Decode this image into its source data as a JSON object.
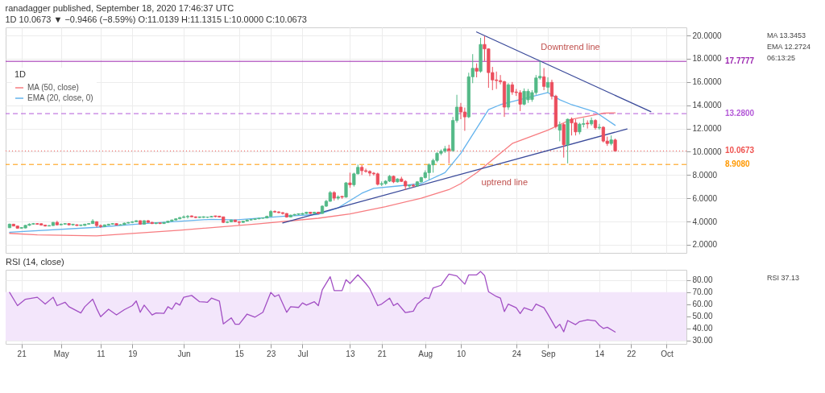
{
  "chart_data": [
    {
      "type": "candlestick",
      "title": "ranadagger published, September 18, 2020 17:46:37 UTC",
      "subtitle": "1D 10.0673 ▼ −0.9466 (−8.59%) O:11.0139 H:11.1315 L:10.0000 C:10.0673",
      "legend_title": "1D",
      "legend": "top left",
      "grid": true,
      "tick_labels": "y",
      "xlim": [
        "2020-04-17",
        "2020-10-06"
      ],
      "xticks": [
        {
          "value": "2020-04-21",
          "label": null
        },
        {
          "value": "2020-05-01",
          "label": null
        },
        {
          "value": "2020-05-11",
          "label": null
        },
        {
          "value": "2020-05-19",
          "label": null
        },
        {
          "value": "2020-06-01",
          "label": null
        },
        {
          "value": "2020-06-15",
          "label": null
        },
        {
          "value": "2020-06-23",
          "label": null
        },
        {
          "value": "2020-07-01",
          "label": null
        },
        {
          "value": "2020-07-13",
          "label": null
        },
        {
          "value": "2020-07-21",
          "label": null
        },
        {
          "value": "2020-08-01",
          "label": null
        },
        {
          "value": "2020-08-10",
          "label": null
        },
        {
          "value": "2020-08-24",
          "label": null
        },
        {
          "value": "2020-09-01",
          "label": null
        },
        {
          "value": "2020-09-14",
          "label": null
        },
        {
          "value": "2020-09-22",
          "label": null
        },
        {
          "value": "2020-10-01",
          "label": null
        }
      ],
      "ylim": [
        1.3,
        20.7
      ],
      "yticks": [
        {
          "value": 2,
          "label": "2.0000"
        },
        {
          "value": 4,
          "label": "4.0000"
        },
        {
          "value": 6,
          "label": "6.0000"
        },
        {
          "value": 8,
          "label": "8.0000"
        },
        {
          "value": 10,
          "label": "10.0000"
        },
        {
          "value": 12,
          "label": "12.0000"
        },
        {
          "value": 14,
          "label": "14.0000"
        },
        {
          "value": 16,
          "label": "16.0000"
        },
        {
          "value": 18,
          "label": "18.0000"
        },
        {
          "value": 20,
          "label": "20.0000"
        }
      ],
      "x": [
        "2020-04-18",
        "2020-04-19",
        "2020-04-20",
        "2020-04-21",
        "2020-04-22",
        "2020-04-23",
        "2020-04-24",
        "2020-04-25",
        "2020-04-26",
        "2020-04-27",
        "2020-04-28",
        "2020-04-29",
        "2020-04-30",
        "2020-05-01",
        "2020-05-02",
        "2020-05-03",
        "2020-05-04",
        "2020-05-05",
        "2020-05-06",
        "2020-05-07",
        "2020-05-08",
        "2020-05-09",
        "2020-05-10",
        "2020-05-11",
        "2020-05-12",
        "2020-05-13",
        "2020-05-14",
        "2020-05-15",
        "2020-05-16",
        "2020-05-17",
        "2020-05-18",
        "2020-05-19",
        "2020-05-20",
        "2020-05-21",
        "2020-05-22",
        "2020-05-23",
        "2020-05-24",
        "2020-05-25",
        "2020-05-26",
        "2020-05-27",
        "2020-05-28",
        "2020-05-29",
        "2020-05-30",
        "2020-05-31",
        "2020-06-01",
        "2020-06-02",
        "2020-06-03",
        "2020-06-04",
        "2020-06-05",
        "2020-06-06",
        "2020-06-07",
        "2020-06-08",
        "2020-06-09",
        "2020-06-10",
        "2020-06-11",
        "2020-06-12",
        "2020-06-13",
        "2020-06-14",
        "2020-06-15",
        "2020-06-16",
        "2020-06-17",
        "2020-06-18",
        "2020-06-19",
        "2020-06-20",
        "2020-06-21",
        "2020-06-22",
        "2020-06-23",
        "2020-06-24",
        "2020-06-25",
        "2020-06-26",
        "2020-06-27",
        "2020-06-28",
        "2020-06-29",
        "2020-06-30",
        "2020-07-01",
        "2020-07-02",
        "2020-07-03",
        "2020-07-04",
        "2020-07-05",
        "2020-07-06",
        "2020-07-07",
        "2020-07-08",
        "2020-07-09",
        "2020-07-10",
        "2020-07-11",
        "2020-07-12",
        "2020-07-13",
        "2020-07-14",
        "2020-07-15",
        "2020-07-16",
        "2020-07-17",
        "2020-07-18",
        "2020-07-19",
        "2020-07-20",
        "2020-07-21",
        "2020-07-22",
        "2020-07-23",
        "2020-07-24",
        "2020-07-25",
        "2020-07-26",
        "2020-07-27",
        "2020-07-28",
        "2020-07-29",
        "2020-07-30",
        "2020-07-31",
        "2020-08-01",
        "2020-08-02",
        "2020-08-03",
        "2020-08-04",
        "2020-08-05",
        "2020-08-06",
        "2020-08-07",
        "2020-08-08",
        "2020-08-09",
        "2020-08-10",
        "2020-08-11",
        "2020-08-12",
        "2020-08-13",
        "2020-08-14",
        "2020-08-15",
        "2020-08-16",
        "2020-08-17",
        "2020-08-18",
        "2020-08-19",
        "2020-08-20",
        "2020-08-21",
        "2020-08-22",
        "2020-08-23",
        "2020-08-24",
        "2020-08-25",
        "2020-08-26",
        "2020-08-27",
        "2020-08-28",
        "2020-08-29",
        "2020-08-30",
        "2020-08-31",
        "2020-09-01",
        "2020-09-02",
        "2020-09-03",
        "2020-09-04",
        "2020-09-05",
        "2020-09-06",
        "2020-09-07",
        "2020-09-08",
        "2020-09-09",
        "2020-09-10",
        "2020-09-11",
        "2020-09-12",
        "2020-09-13",
        "2020-09-14",
        "2020-09-15",
        "2020-09-16",
        "2020-09-17",
        "2020-09-18"
      ],
      "ohlc": [
        [
          3.46,
          3.82,
          3.44,
          3.77
        ],
        [
          3.77,
          3.8,
          3.58,
          3.61
        ],
        [
          3.61,
          3.64,
          3.38,
          3.42
        ],
        [
          3.42,
          3.5,
          3.38,
          3.48
        ],
        [
          3.44,
          3.7,
          3.42,
          3.67
        ],
        [
          3.67,
          3.84,
          3.62,
          3.77
        ],
        [
          3.77,
          3.87,
          3.74,
          3.82
        ],
        [
          3.82,
          3.86,
          3.74,
          3.76
        ],
        [
          3.81,
          3.84,
          3.66,
          3.69
        ],
        [
          3.69,
          3.73,
          3.57,
          3.61
        ],
        [
          3.61,
          3.7,
          3.58,
          3.65
        ],
        [
          3.65,
          3.96,
          3.63,
          3.92
        ],
        [
          3.92,
          4.06,
          3.66,
          3.71
        ],
        [
          3.71,
          3.82,
          3.68,
          3.77
        ],
        [
          3.77,
          3.85,
          3.74,
          3.82
        ],
        [
          3.82,
          3.86,
          3.65,
          3.71
        ],
        [
          3.71,
          3.78,
          3.64,
          3.77
        ],
        [
          3.72,
          3.76,
          3.62,
          3.65
        ],
        [
          3.65,
          3.72,
          3.61,
          3.71
        ],
        [
          3.66,
          3.8,
          3.63,
          3.77
        ],
        [
          3.77,
          3.86,
          3.74,
          3.82
        ],
        [
          3.82,
          4.2,
          3.8,
          4.03
        ],
        [
          3.98,
          4.02,
          3.5,
          3.65
        ],
        [
          3.65,
          3.75,
          3.45,
          3.57
        ],
        [
          3.57,
          3.74,
          3.55,
          3.71
        ],
        [
          3.69,
          3.8,
          3.66,
          3.77
        ],
        [
          3.77,
          3.86,
          3.74,
          3.82
        ],
        [
          3.82,
          3.85,
          3.66,
          3.69
        ],
        [
          3.69,
          3.76,
          3.67,
          3.73
        ],
        [
          3.73,
          3.9,
          3.71,
          3.86
        ],
        [
          3.86,
          3.95,
          3.83,
          3.92
        ],
        [
          3.92,
          4.02,
          3.88,
          3.98
        ],
        [
          3.98,
          4.1,
          3.95,
          4.07
        ],
        [
          4.07,
          4.09,
          3.72,
          3.77
        ],
        [
          3.77,
          4.1,
          3.75,
          4.07
        ],
        [
          4.07,
          4.12,
          3.88,
          3.92
        ],
        [
          3.92,
          3.97,
          3.78,
          3.82
        ],
        [
          3.82,
          3.9,
          3.77,
          3.88
        ],
        [
          3.88,
          3.9,
          3.78,
          3.82
        ],
        [
          3.82,
          3.95,
          3.8,
          3.92
        ],
        [
          3.92,
          4.06,
          3.89,
          4.03
        ],
        [
          4.03,
          4.16,
          3.99,
          4.13
        ],
        [
          4.13,
          4.28,
          4.1,
          4.23
        ],
        [
          4.23,
          4.38,
          4.19,
          4.34
        ],
        [
          4.34,
          4.52,
          4.3,
          4.4
        ],
        [
          4.4,
          4.56,
          4.25,
          4.44
        ],
        [
          4.48,
          4.52,
          4.36,
          4.4
        ],
        [
          4.4,
          4.44,
          4.28,
          4.34
        ],
        [
          4.34,
          4.42,
          4.3,
          4.4
        ],
        [
          4.35,
          4.44,
          4.31,
          4.41
        ],
        [
          4.36,
          4.42,
          4.31,
          4.38
        ],
        [
          4.38,
          4.48,
          4.35,
          4.44
        ],
        [
          4.48,
          4.5,
          4.36,
          4.42
        ],
        [
          4.46,
          4.48,
          4.34,
          4.38
        ],
        [
          4.4,
          4.42,
          3.86,
          3.92
        ],
        [
          3.92,
          4.04,
          3.85,
          3.96
        ],
        [
          3.96,
          4.16,
          3.93,
          4.13
        ],
        [
          4.13,
          4.15,
          3.94,
          3.98
        ],
        [
          3.98,
          4.02,
          3.7,
          3.92
        ],
        [
          3.92,
          4.06,
          3.88,
          4.03
        ],
        [
          4.03,
          4.17,
          4.0,
          4.13
        ],
        [
          4.13,
          4.2,
          4.08,
          4.17
        ],
        [
          4.17,
          4.27,
          4.13,
          4.23
        ],
        [
          4.23,
          4.31,
          4.19,
          4.28
        ],
        [
          4.28,
          4.34,
          4.25,
          4.3
        ],
        [
          4.3,
          4.5,
          4.27,
          4.44
        ],
        [
          4.44,
          4.98,
          4.42,
          4.86
        ],
        [
          4.86,
          4.95,
          4.75,
          4.82
        ],
        [
          4.82,
          4.88,
          4.7,
          4.76
        ],
        [
          4.76,
          4.8,
          4.6,
          4.69
        ],
        [
          4.69,
          4.72,
          4.33,
          4.38
        ],
        [
          4.38,
          4.58,
          4.35,
          4.55
        ],
        [
          4.55,
          4.65,
          4.5,
          4.61
        ],
        [
          4.61,
          4.68,
          4.55,
          4.67
        ],
        [
          4.62,
          4.74,
          4.58,
          4.69
        ],
        [
          4.69,
          4.84,
          4.64,
          4.8
        ],
        [
          4.8,
          4.83,
          4.65,
          4.69
        ],
        [
          4.69,
          4.84,
          4.66,
          4.8
        ],
        [
          4.8,
          4.84,
          4.62,
          4.69
        ],
        [
          4.69,
          5.4,
          4.66,
          5.32
        ],
        [
          5.32,
          5.86,
          5.25,
          5.74
        ],
        [
          5.74,
          6.62,
          5.7,
          6.49
        ],
        [
          6.49,
          6.6,
          5.8,
          6.01
        ],
        [
          6.01,
          6.25,
          5.85,
          6.11
        ],
        [
          6.16,
          6.2,
          5.95,
          6.1
        ],
        [
          6.1,
          7.4,
          6.05,
          7.32
        ],
        [
          7.32,
          8.2,
          6.9,
          7.16
        ],
        [
          7.16,
          8.2,
          7.0,
          8.1
        ],
        [
          8.1,
          8.9,
          8.05,
          8.66
        ],
        [
          8.66,
          8.85,
          8.0,
          8.37
        ],
        [
          8.37,
          8.55,
          8.2,
          8.31
        ],
        [
          8.31,
          8.4,
          7.9,
          8.16
        ],
        [
          8.16,
          8.25,
          7.95,
          8.1
        ],
        [
          8.1,
          8.2,
          7.1,
          7.2
        ],
        [
          7.2,
          7.45,
          7.05,
          7.26
        ],
        [
          7.26,
          7.55,
          7.15,
          7.47
        ],
        [
          7.47,
          8.0,
          7.4,
          7.89
        ],
        [
          7.89,
          7.95,
          7.3,
          7.41
        ],
        [
          7.41,
          7.72,
          7.35,
          7.66
        ],
        [
          7.66,
          7.85,
          7.4,
          7.45
        ],
        [
          7.45,
          7.55,
          6.7,
          7.05
        ],
        [
          7.05,
          7.2,
          6.9,
          7.12
        ],
        [
          7.12,
          7.25,
          6.95,
          7.05
        ],
        [
          7.05,
          7.48,
          6.98,
          7.41
        ],
        [
          7.41,
          7.85,
          7.35,
          7.78
        ],
        [
          7.78,
          8.4,
          7.7,
          8.2
        ],
        [
          8.2,
          9.0,
          7.6,
          8.87
        ],
        [
          8.87,
          9.4,
          8.2,
          9.25
        ],
        [
          9.25,
          9.95,
          9.1,
          9.87
        ],
        [
          9.87,
          10.2,
          9.7,
          10.05
        ],
        [
          10.05,
          10.5,
          9.9,
          10.25
        ],
        [
          10.25,
          10.6,
          9.0,
          10.1
        ],
        [
          10.1,
          13.0,
          10.0,
          12.69
        ],
        [
          12.69,
          14.9,
          12.5,
          13.84
        ],
        [
          13.84,
          14.2,
          12.8,
          13.42
        ],
        [
          13.42,
          13.8,
          11.8,
          13.0
        ],
        [
          13.0,
          16.8,
          12.9,
          16.45
        ],
        [
          16.45,
          18.4,
          15.9,
          17.18
        ],
        [
          17.18,
          17.6,
          16.4,
          16.93
        ],
        [
          16.93,
          19.8,
          16.8,
          19.23
        ],
        [
          19.23,
          19.95,
          17.8,
          18.85
        ],
        [
          18.85,
          18.9,
          15.5,
          16.81
        ],
        [
          16.81,
          17.3,
          15.3,
          16.18
        ],
        [
          16.18,
          16.9,
          15.4,
          16.12
        ],
        [
          16.12,
          16.6,
          15.8,
          16.03
        ],
        [
          16.03,
          16.1,
          13.0,
          13.84
        ],
        [
          13.84,
          15.9,
          13.6,
          15.76
        ],
        [
          15.76,
          16.0,
          14.9,
          15.14
        ],
        [
          15.14,
          15.4,
          14.8,
          15.09
        ],
        [
          15.09,
          15.3,
          13.5,
          14.09
        ],
        [
          14.09,
          15.45,
          14.0,
          15.2
        ],
        [
          14.47,
          15.4,
          14.2,
          15.2
        ],
        [
          14.5,
          15.3,
          14.3,
          15.09
        ],
        [
          15.09,
          16.6,
          14.9,
          16.35
        ],
        [
          16.35,
          17.8,
          16.2,
          16.49
        ],
        [
          16.45,
          17.2,
          15.3,
          15.62
        ],
        [
          15.55,
          16.4,
          15.1,
          15.97
        ],
        [
          15.97,
          16.2,
          14.5,
          14.78
        ],
        [
          14.78,
          14.9,
          12.0,
          12.17
        ],
        [
          11.86,
          12.6,
          10.9,
          12.34
        ],
        [
          12.34,
          12.45,
          9.5,
          10.6
        ],
        [
          10.6,
          12.85,
          9.0,
          12.8
        ],
        [
          12.8,
          12.95,
          11.4,
          12.48
        ],
        [
          12.48,
          12.8,
          11.4,
          11.71
        ],
        [
          11.71,
          12.5,
          11.5,
          12.38
        ],
        [
          12.36,
          12.9,
          12.1,
          12.42
        ],
        [
          12.46,
          12.7,
          12.0,
          12.4
        ],
        [
          12.4,
          12.95,
          12.25,
          12.69
        ],
        [
          12.69,
          12.8,
          11.9,
          12.07
        ],
        [
          12.05,
          12.4,
          11.9,
          12.11
        ],
        [
          12.11,
          12.2,
          10.8,
          10.92
        ],
        [
          10.92,
          11.3,
          10.5,
          10.71
        ],
        [
          10.71,
          11.4,
          10.55,
          11.02
        ],
        [
          11.0139,
          11.1315,
          10.0,
          10.0673
        ]
      ],
      "colors": [
        "#53b987",
        "#eb4d5c",
        "#eb4d5c",
        "#53b987",
        "#53b987",
        "#53b987",
        "#53b987",
        "#eb4d5c",
        "#eb4d5c",
        "#eb4d5c",
        "#53b987",
        "#53b987",
        "#eb4d5c",
        "#53b987",
        "#53b987",
        "#eb4d5c",
        "#53b987",
        "#eb4d5c",
        "#53b987",
        "#53b987",
        "#53b987",
        "#53b987",
        "#eb4d5c",
        "#eb4d5c",
        "#53b987",
        "#53b987",
        "#53b987",
        "#eb4d5c",
        "#53b987",
        "#53b987",
        "#53b987",
        "#53b987",
        "#53b987",
        "#eb4d5c",
        "#53b987",
        "#eb4d5c",
        "#eb4d5c",
        "#53b987",
        "#eb4d5c",
        "#53b987",
        "#53b987",
        "#53b987",
        "#53b987",
        "#53b987",
        "#53b987",
        "#53b987",
        "#eb4d5c",
        "#eb4d5c",
        "#53b987",
        "#53b987",
        "#53b987",
        "#53b987",
        "#eb4d5c",
        "#eb4d5c",
        "#eb4d5c",
        "#53b987",
        "#53b987",
        "#eb4d5c",
        "#eb4d5c",
        "#53b987",
        "#53b987",
        "#53b987",
        "#53b987",
        "#53b987",
        "#53b987",
        "#53b987",
        "#53b987",
        "#eb4d5c",
        "#eb4d5c",
        "#eb4d5c",
        "#eb4d5c",
        "#53b987",
        "#53b987",
        "#53b987",
        "#53b987",
        "#53b987",
        "#eb4d5c",
        "#53b987",
        "#eb4d5c",
        "#53b987",
        "#53b987",
        "#53b987",
        "#eb4d5c",
        "#53b987",
        "#eb4d5c",
        "#53b987",
        "#eb4d5c",
        "#53b987",
        "#53b987",
        "#eb4d5c",
        "#eb4d5c",
        "#eb4d5c",
        "#eb4d5c",
        "#eb4d5c",
        "#53b987",
        "#53b987",
        "#53b987",
        "#eb4d5c",
        "#53b987",
        "#eb4d5c",
        "#eb4d5c",
        "#53b987",
        "#eb4d5c",
        "#53b987",
        "#53b987",
        "#53b987",
        "#53b987",
        "#53b987",
        "#53b987",
        "#53b987",
        "#53b987",
        "#eb4d5c",
        "#53b987",
        "#53b987",
        "#eb4d5c",
        "#eb4d5c",
        "#53b987",
        "#53b987",
        "#eb4d5c",
        "#53b987",
        "#eb4d5c",
        "#eb4d5c",
        "#eb4d5c",
        "#eb4d5c",
        "#eb4d5c",
        "#eb4d5c",
        "#53b987",
        "#eb4d5c",
        "#eb4d5c",
        "#eb4d5c",
        "#53b987",
        "#53b987",
        "#53b987",
        "#53b987",
        "#53b987",
        "#eb4d5c",
        "#53b987",
        "#eb4d5c",
        "#eb4d5c",
        "#53b987",
        "#eb4d5c",
        "#53b987",
        "#eb4d5c",
        "#eb4d5c",
        "#53b987",
        "#53b987",
        "#eb4d5c",
        "#53b987",
        "#eb4d5c",
        "#53b987",
        "#eb4d5c",
        "#eb4d5c",
        "#53b987",
        "#eb4d5c"
      ],
      "series": [
        {
          "type": "line",
          "name": "MA (50, close)",
          "color": "#f77c80",
          "x": [
            "2020-04-18",
            "2020-04-25",
            "2020-05-10",
            "2020-05-31",
            "2020-06-20",
            "2020-07-05",
            "2020-07-13",
            "2020-07-22",
            "2020-07-31",
            "2020-08-07",
            "2020-08-10",
            "2020-08-14",
            "2020-08-23",
            "2020-09-01",
            "2020-09-07",
            "2020-09-15",
            "2020-09-18"
          ],
          "values": [
            2.98,
            2.85,
            2.77,
            3.25,
            3.8,
            4.28,
            4.65,
            5.28,
            6.01,
            6.74,
            7.26,
            8.2,
            10.71,
            11.86,
            12.8,
            13.32,
            13.3453
          ]
        },
        {
          "type": "line",
          "name": "EMA (20, close, 0)",
          "color": "#63b3ed",
          "x": [
            "2020-04-18",
            "2020-05-10",
            "2020-05-22",
            "2020-06-08",
            "2020-06-14",
            "2020-06-26",
            "2020-07-05",
            "2020-07-10",
            "2020-07-16",
            "2020-07-19",
            "2020-07-25",
            "2020-07-31",
            "2020-08-06",
            "2020-08-10",
            "2020-08-17",
            "2020-08-20",
            "2020-09-01",
            "2020-09-04",
            "2020-09-07",
            "2020-09-13",
            "2020-09-18"
          ],
          "values": [
            3.08,
            3.5,
            3.82,
            4.19,
            4.13,
            4.44,
            4.61,
            5.17,
            6.43,
            6.85,
            7.05,
            7.26,
            8.2,
            9.87,
            13.63,
            14.05,
            15.09,
            14.47,
            14.05,
            13.42,
            12.2724
          ]
        },
        {
          "type": "line",
          "color": "#3a4a9a",
          "x": [
            "2020-06-26",
            "2020-09-21"
          ],
          "values": [
            3.88,
            11.96
          ]
        },
        {
          "type": "line",
          "color": "#3a4a9a",
          "x": [
            "2020-08-14",
            "2020-09-27"
          ],
          "values": [
            20.3,
            13.45
          ]
        }
      ],
      "ref_lines": [
        {
          "axis": "y",
          "value": 17.7777,
          "label": "17.7777",
          "color": "#9c27b0"
        },
        {
          "axis": "y",
          "value": 13.28,
          "label": "13.2800",
          "color": "#b45ad8",
          "line_style": "dashed"
        },
        {
          "axis": "y",
          "value": 10.0673,
          "label": "10.0673",
          "color": "#ef5350",
          "line_style": "dotted"
        },
        {
          "axis": "y",
          "value": 8.908,
          "label": "8.9080",
          "color": "#ff9800",
          "line_style": "dashed"
        }
      ],
      "annotations": [
        {
          "text": "Downtrend line",
          "x": "2020-08-29",
          "y": 17.96
        },
        {
          "text": "uptrend line",
          "x": "2020-08-14",
          "y": 8.43
        },
        "MA 13.3453",
        "EMA 12.2724",
        "06:13:25"
      ]
    },
    {
      "type": "line",
      "title": "RSI (14, close)",
      "grid": true,
      "xlim": [
        "2020-04-17",
        "2020-10-06"
      ],
      "xticks": [
        {
          "value": "2020-04-21",
          "label": "21"
        },
        {
          "value": "2020-05-01",
          "label": "May"
        },
        {
          "value": "2020-05-11",
          "label": "11"
        },
        {
          "value": "2020-05-19",
          "label": "19"
        },
        {
          "value": "2020-06-01",
          "label": "Jun"
        },
        {
          "value": "2020-06-15",
          "label": "15"
        },
        {
          "value": "2020-06-23",
          "label": "23"
        },
        {
          "value": "2020-07-01",
          "label": "Jul"
        },
        {
          "value": "2020-07-13",
          "label": "13"
        },
        {
          "value": "2020-07-21",
          "label": "21"
        },
        {
          "value": "2020-08-01",
          "label": "Aug"
        },
        {
          "value": "2020-08-10",
          "label": "10"
        },
        {
          "value": "2020-08-24",
          "label": "24"
        },
        {
          "value": "2020-09-01",
          "label": "Sep"
        },
        {
          "value": "2020-09-14",
          "label": "14"
        },
        {
          "value": "2020-09-22",
          "label": "22"
        },
        {
          "value": "2020-10-01",
          "label": "Oct"
        }
      ],
      "ylim": [
        27.3,
        88.5
      ],
      "yticks": [
        {
          "value": 30,
          "label": "30.00"
        },
        {
          "value": 40,
          "label": "40.00"
        },
        {
          "value": 50,
          "label": "50.00"
        },
        {
          "value": 60,
          "label": "60.00"
        },
        {
          "value": 70,
          "label": "70.00"
        },
        {
          "value": 80,
          "label": "80.00"
        }
      ],
      "bands": [
        {
          "axis": "y",
          "from": 30,
          "to": 70,
          "color": "#f3e6fb"
        }
      ],
      "series": [
        {
          "color": "#a24fc4",
          "x": [
            "2020-04-18",
            "2020-04-20",
            "2020-04-22",
            "2020-04-25",
            "2020-04-27",
            "2020-04-29",
            "2020-04-30",
            "2020-05-02",
            "2020-05-03",
            "2020-05-06",
            "2020-05-07",
            "2020-05-09",
            "2020-05-10",
            "2020-05-11",
            "2020-05-13",
            "2020-05-15",
            "2020-05-17",
            "2020-05-19",
            "2020-05-20",
            "2020-05-21",
            "2020-05-22",
            "2020-05-24",
            "2020-05-25",
            "2020-05-27",
            "2020-05-28",
            "2020-05-29",
            "2020-05-30",
            "2020-05-31",
            "2020-06-01",
            "2020-06-03",
            "2020-06-05",
            "2020-06-07",
            "2020-06-08",
            "2020-06-10",
            "2020-06-11",
            "2020-06-13",
            "2020-06-14",
            "2020-06-15",
            "2020-06-17",
            "2020-06-19",
            "2020-06-21",
            "2020-06-23",
            "2020-06-24",
            "2020-06-25",
            "2020-06-27",
            "2020-06-28",
            "2020-06-30",
            "2020-07-01",
            "2020-07-02",
            "2020-07-04",
            "2020-07-05",
            "2020-07-06",
            "2020-07-08",
            "2020-07-09",
            "2020-07-11",
            "2020-07-12",
            "2020-07-13",
            "2020-07-15",
            "2020-07-17",
            "2020-07-18",
            "2020-07-20",
            "2020-07-21",
            "2020-07-23",
            "2020-07-24",
            "2020-07-25",
            "2020-07-27",
            "2020-07-29",
            "2020-07-30",
            "2020-08-01",
            "2020-08-02",
            "2020-08-03",
            "2020-08-05",
            "2020-08-07",
            "2020-08-09",
            "2020-08-11",
            "2020-08-12",
            "2020-08-14",
            "2020-08-15",
            "2020-08-16",
            "2020-08-17",
            "2020-08-19",
            "2020-08-20",
            "2020-08-21",
            "2020-08-22",
            "2020-08-24",
            "2020-08-25",
            "2020-08-26",
            "2020-08-28",
            "2020-08-29",
            "2020-08-31",
            "2020-09-01",
            "2020-09-03",
            "2020-09-04",
            "2020-09-05",
            "2020-09-06",
            "2020-09-08",
            "2020-09-09",
            "2020-09-11",
            "2020-09-13",
            "2020-09-14",
            "2020-09-15",
            "2020-09-16",
            "2020-09-18"
          ],
          "values": [
            69.8,
            58.9,
            64.2,
            65.8,
            60.2,
            65.8,
            58.9,
            61.7,
            58.0,
            52.8,
            58.0,
            64.2,
            56.5,
            49.7,
            55.9,
            51.2,
            55.6,
            58.9,
            62.7,
            53.4,
            59.3,
            51.2,
            52.8,
            52.5,
            58.0,
            55.9,
            61.1,
            59.3,
            65.8,
            67.3,
            62.1,
            61.7,
            65.1,
            62.7,
            43.8,
            48.8,
            43.5,
            43.5,
            51.9,
            49.4,
            53.4,
            69.8,
            66.4,
            67.9,
            53.4,
            58.0,
            57.4,
            61.1,
            59.3,
            62.1,
            58.9,
            71.9,
            82.8,
            71.3,
            71.3,
            80.3,
            77.2,
            84.3,
            77.2,
            72.9,
            58.9,
            60.2,
            65.1,
            58.9,
            60.8,
            53.1,
            54.3,
            60.2,
            65.5,
            64.8,
            73.5,
            75.7,
            84.9,
            83.4,
            76.6,
            84.3,
            84.3,
            87.1,
            83.7,
            70.4,
            66.4,
            65.1,
            54.0,
            60.2,
            57.1,
            52.4,
            57.1,
            54.9,
            60.2,
            57.1,
            51.8,
            40.4,
            43.5,
            37.3,
            46.6,
            43.2,
            45.7,
            47.2,
            46.3,
            42.6,
            40.1,
            41.0,
            37.13
          ]
        }
      ],
      "annotations": [
        "RSI 37.13"
      ]
    }
  ]
}
